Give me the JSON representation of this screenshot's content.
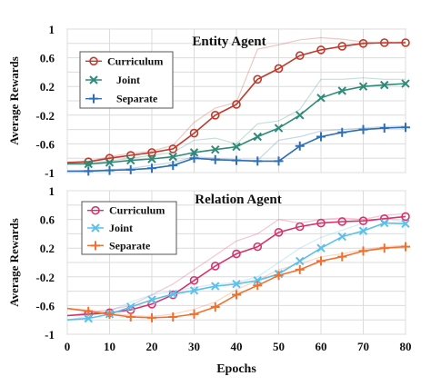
{
  "chart_data": [
    {
      "type": "line",
      "title": "Entity Agent",
      "xlabel": "",
      "ylabel": "Average Rewards",
      "xlim": [
        0,
        80
      ],
      "ylim": [
        -1,
        1
      ],
      "yticks": [
        1,
        0.6,
        0.2,
        -0.2,
        -0.6,
        -1
      ],
      "yticklabels": [
        "1",
        "0.6",
        "0.2",
        "-0.2",
        "-0.6",
        "-1"
      ],
      "grid": true,
      "legend": "top-left",
      "series": [
        {
          "name": "Curriculum",
          "color": "#c0392b",
          "marker": "circle",
          "x": [
            0,
            5,
            10,
            15,
            20,
            25,
            30,
            35,
            40,
            45,
            50,
            55,
            60,
            65,
            70,
            75,
            80
          ],
          "values": [
            -0.86,
            -0.85,
            -0.8,
            -0.76,
            -0.72,
            -0.67,
            -0.45,
            -0.2,
            -0.05,
            0.3,
            0.45,
            0.63,
            0.71,
            0.76,
            0.8,
            0.81,
            0.81
          ],
          "raw_values": [
            -0.86,
            -0.84,
            -0.78,
            -0.73,
            -0.7,
            -0.62,
            -0.3,
            -0.1,
            -0.02,
            0.72,
            0.78,
            0.85,
            0.88,
            0.86,
            0.82,
            0.8,
            0.82
          ]
        },
        {
          "name": "Joint",
          "color": "#2e8b78",
          "marker": "x",
          "x": [
            0,
            5,
            10,
            15,
            20,
            25,
            30,
            35,
            40,
            45,
            50,
            55,
            60,
            65,
            70,
            75,
            80
          ],
          "values": [
            -0.88,
            -0.88,
            -0.86,
            -0.83,
            -0.81,
            -0.78,
            -0.72,
            -0.68,
            -0.64,
            -0.5,
            -0.38,
            -0.2,
            0.04,
            0.14,
            0.2,
            0.22,
            0.24
          ],
          "raw_values": [
            -0.88,
            -0.87,
            -0.84,
            -0.8,
            -0.76,
            -0.72,
            -0.55,
            -0.52,
            -0.6,
            -0.32,
            -0.28,
            -0.12,
            0.3,
            0.3,
            0.32,
            0.3,
            0.3
          ]
        },
        {
          "name": "Separate",
          "color": "#2e6fb5",
          "marker": "plus",
          "x": [
            0,
            5,
            10,
            15,
            20,
            25,
            30,
            35,
            40,
            45,
            50,
            55,
            60,
            65,
            70,
            75,
            80
          ],
          "values": [
            -0.98,
            -0.98,
            -0.97,
            -0.96,
            -0.94,
            -0.9,
            -0.8,
            -0.82,
            -0.83,
            -0.84,
            -0.84,
            -0.63,
            -0.5,
            -0.44,
            -0.4,
            -0.38,
            -0.37
          ],
          "raw_values": [
            -0.98,
            -0.97,
            -0.96,
            -0.94,
            -0.9,
            -0.86,
            -0.78,
            -0.8,
            -0.82,
            -0.83,
            -0.55,
            -0.5,
            -0.42,
            -0.4,
            -0.38,
            -0.36,
            -0.35
          ]
        }
      ]
    },
    {
      "type": "line",
      "title": "Relation Agent",
      "xlabel": "Epochs",
      "ylabel": "Average Rewards",
      "xlim": [
        0,
        80
      ],
      "ylim": [
        -1,
        1
      ],
      "xticks": [
        0,
        10,
        20,
        30,
        40,
        50,
        60,
        70,
        80
      ],
      "yticks": [
        1,
        0.6,
        0.2,
        -0.2,
        -0.6,
        -1
      ],
      "yticklabels": [
        "1",
        "0.6",
        "0.2",
        "-0.2",
        "-0.6",
        "-1"
      ],
      "grid": true,
      "legend": "top-left",
      "series": [
        {
          "name": "Curriculum",
          "color": "#d6336c",
          "marker": "circle",
          "x": [
            0,
            5,
            10,
            15,
            20,
            25,
            30,
            35,
            40,
            45,
            50,
            55,
            60,
            65,
            70,
            75,
            80
          ],
          "values": [
            -0.74,
            -0.72,
            -0.7,
            -0.66,
            -0.58,
            -0.45,
            -0.25,
            -0.05,
            0.12,
            0.22,
            0.42,
            0.5,
            0.55,
            0.57,
            0.58,
            0.61,
            0.64
          ],
          "raw_values": [
            -0.74,
            -0.7,
            -0.66,
            -0.6,
            -0.45,
            -0.3,
            -0.1,
            0.1,
            0.3,
            0.4,
            0.6,
            0.55,
            0.6,
            0.62,
            0.6,
            0.66,
            0.68
          ]
        },
        {
          "name": "Joint",
          "color": "#5bc0eb",
          "marker": "x",
          "x": [
            0,
            5,
            10,
            15,
            20,
            25,
            30,
            35,
            40,
            45,
            50,
            55,
            60,
            65,
            70,
            75,
            80
          ],
          "values": [
            -0.8,
            -0.78,
            -0.72,
            -0.62,
            -0.52,
            -0.44,
            -0.39,
            -0.33,
            -0.3,
            -0.25,
            -0.16,
            0.02,
            0.2,
            0.36,
            0.44,
            0.55,
            0.54
          ],
          "raw_values": [
            -0.8,
            -0.75,
            -0.68,
            -0.55,
            -0.45,
            -0.4,
            -0.35,
            -0.3,
            -0.28,
            -0.2,
            0.0,
            0.2,
            0.35,
            0.45,
            0.55,
            0.62,
            0.56
          ]
        },
        {
          "name": "Separate",
          "color": "#f07030",
          "marker": "plus",
          "x": [
            0,
            5,
            10,
            15,
            20,
            25,
            30,
            35,
            40,
            45,
            50,
            55,
            60,
            65,
            70,
            75,
            80
          ],
          "values": [
            -0.64,
            -0.68,
            -0.72,
            -0.76,
            -0.77,
            -0.76,
            -0.72,
            -0.62,
            -0.45,
            -0.32,
            -0.18,
            -0.1,
            0.02,
            0.08,
            0.16,
            0.2,
            0.22
          ],
          "raw_values": [
            -0.64,
            -0.66,
            -0.7,
            -0.74,
            -0.75,
            -0.72,
            -0.65,
            -0.55,
            -0.38,
            -0.25,
            -0.1,
            -0.02,
            0.08,
            0.12,
            0.18,
            0.22,
            0.24
          ]
        }
      ]
    }
  ]
}
